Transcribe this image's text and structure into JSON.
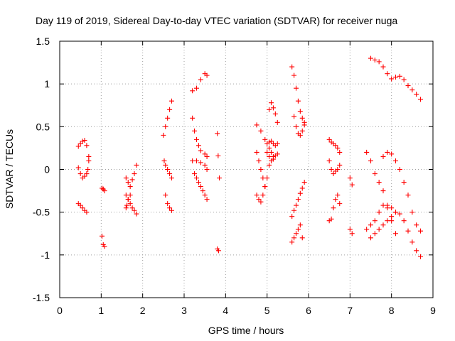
{
  "chart_data": {
    "type": "scatter",
    "title": "Day 119 of 2019, Sidereal Day-to-day VTEC variation (SDTVAR) for receiver nuga",
    "xlabel": "GPS time / hours",
    "ylabel": "SDTVAR / TECUs",
    "xlim": [
      0,
      9
    ],
    "ylim": [
      -1.5,
      1.5
    ],
    "xticks": [
      0,
      1,
      2,
      3,
      4,
      5,
      6,
      7,
      8,
      9
    ],
    "yticks": [
      -1.5,
      -1,
      -0.5,
      0,
      0.5,
      1,
      1.5
    ],
    "xtick_labels": [
      "0",
      "1",
      "2",
      "3",
      "4",
      "5",
      "6",
      "7",
      "8",
      "9"
    ],
    "ytick_labels": [
      "-1.5",
      "-1",
      "-0.5",
      "0",
      "0.5",
      "1",
      "1.5"
    ],
    "grid": true,
    "marker": "+",
    "color": "#ff0000",
    "series": [
      {
        "name": "s1",
        "x": [
          0.45,
          0.5,
          0.55,
          0.6,
          0.65,
          0.7
        ],
        "y": [
          0.27,
          0.3,
          0.33,
          0.34,
          0.28,
          0.15
        ]
      },
      {
        "name": "s2",
        "x": [
          0.7,
          0.68,
          0.65,
          0.6,
          0.55,
          0.5,
          0.45
        ],
        "y": [
          0.1,
          0.0,
          -0.05,
          -0.08,
          -0.1,
          -0.05,
          0.02
        ]
      },
      {
        "name": "s3",
        "x": [
          0.45,
          0.5,
          0.55,
          0.6,
          0.65
        ],
        "y": [
          -0.4,
          -0.42,
          -0.45,
          -0.48,
          -0.5
        ]
      },
      {
        "name": "s4",
        "x": [
          1.02,
          1.05,
          1.08
        ],
        "y": [
          -0.22,
          -0.23,
          -0.25
        ]
      },
      {
        "name": "s5",
        "x": [
          1.02,
          1.05,
          1.08
        ],
        "y": [
          -0.78,
          -0.88,
          -0.9
        ]
      },
      {
        "name": "s6",
        "x": [
          1.6,
          1.65,
          1.7,
          1.75,
          1.8,
          1.85
        ],
        "y": [
          -0.1,
          -0.15,
          -0.2,
          -0.12,
          -0.05,
          0.05
        ]
      },
      {
        "name": "s7",
        "x": [
          1.6,
          1.65,
          1.7,
          1.75,
          1.8,
          1.85
        ],
        "y": [
          -0.3,
          -0.35,
          -0.4,
          -0.45,
          -0.48,
          -0.52
        ]
      },
      {
        "name": "s8",
        "x": [
          1.6,
          1.62,
          1.65,
          1.7
        ],
        "y": [
          -0.45,
          -0.42,
          -0.35,
          -0.3
        ]
      },
      {
        "name": "s9",
        "x": [
          2.5,
          2.55,
          2.6,
          2.65,
          2.7
        ],
        "y": [
          0.4,
          0.5,
          0.6,
          0.7,
          0.8
        ]
      },
      {
        "name": "s10",
        "x": [
          2.52,
          2.55,
          2.6,
          2.65,
          2.7
        ],
        "y": [
          0.1,
          0.05,
          0.0,
          -0.05,
          -0.1
        ]
      },
      {
        "name": "s11",
        "x": [
          2.55,
          2.6,
          2.65,
          2.7
        ],
        "y": [
          -0.3,
          -0.4,
          -0.45,
          -0.48
        ]
      },
      {
        "name": "s12",
        "x": [
          3.2,
          3.3,
          3.4,
          3.5,
          3.55
        ],
        "y": [
          0.92,
          0.95,
          1.05,
          1.12,
          1.1
        ]
      },
      {
        "name": "s13",
        "x": [
          3.2,
          3.25,
          3.3,
          3.35,
          3.4,
          3.5,
          3.55
        ],
        "y": [
          0.6,
          0.45,
          0.35,
          0.28,
          0.22,
          0.18,
          0.15
        ]
      },
      {
        "name": "s14",
        "x": [
          3.2,
          3.3,
          3.4,
          3.5,
          3.55
        ],
        "y": [
          0.1,
          0.1,
          0.08,
          0.05,
          0.0
        ]
      },
      {
        "name": "s15",
        "x": [
          3.25,
          3.3,
          3.35,
          3.4,
          3.45,
          3.5,
          3.55
        ],
        "y": [
          -0.05,
          -0.1,
          -0.15,
          -0.2,
          -0.25,
          -0.3,
          -0.35
        ]
      },
      {
        "name": "s16",
        "x": [
          3.8,
          3.82,
          3.85
        ],
        "y": [
          0.42,
          0.16,
          -0.1
        ]
      },
      {
        "name": "s17",
        "x": [
          3.8,
          3.83
        ],
        "y": [
          -0.93,
          -0.95
        ]
      },
      {
        "name": "s18",
        "x": [
          4.75,
          4.85,
          4.95,
          5.05,
          5.15
        ],
        "y": [
          0.52,
          0.45,
          0.35,
          0.25,
          0.15
        ]
      },
      {
        "name": "s19",
        "x": [
          4.75,
          4.8,
          4.85,
          4.9,
          4.95,
          5.0,
          5.05,
          5.1
        ],
        "y": [
          0.2,
          0.1,
          0.0,
          -0.1,
          -0.2,
          -0.1,
          0.05,
          0.2
        ]
      },
      {
        "name": "s20",
        "x": [
          4.75,
          4.8,
          4.85,
          4.9,
          4.95
        ],
        "y": [
          -0.3,
          -0.35,
          -0.38,
          -0.3,
          -0.2
        ]
      },
      {
        "name": "s21",
        "x": [
          5.05,
          5.1,
          5.15,
          5.2,
          5.25
        ],
        "y": [
          0.7,
          0.78,
          0.72,
          0.65,
          0.55
        ]
      },
      {
        "name": "s22",
        "x": [
          5.0,
          5.05,
          5.1,
          5.15,
          5.2,
          5.25
        ],
        "y": [
          0.3,
          0.32,
          0.33,
          0.3,
          0.28,
          0.3
        ]
      },
      {
        "name": "s23",
        "x": [
          5.0,
          5.05,
          5.1,
          5.15,
          5.2,
          5.25
        ],
        "y": [
          0.2,
          0.15,
          0.1,
          0.12,
          0.16,
          0.18
        ]
      },
      {
        "name": "s24",
        "x": [
          5.6,
          5.65,
          5.7,
          5.75,
          5.8,
          5.85,
          5.9
        ],
        "y": [
          1.2,
          1.1,
          0.95,
          0.8,
          0.68,
          0.6,
          0.55
        ]
      },
      {
        "name": "s25",
        "x": [
          5.65,
          5.7,
          5.75,
          5.8,
          5.85,
          5.9
        ],
        "y": [
          0.62,
          0.5,
          0.42,
          0.4,
          0.45,
          0.52
        ]
      },
      {
        "name": "s26",
        "x": [
          5.6,
          5.65,
          5.7,
          5.75,
          5.8,
          5.85,
          5.9
        ],
        "y": [
          -0.55,
          -0.48,
          -0.42,
          -0.35,
          -0.28,
          -0.22,
          -0.15
        ]
      },
      {
        "name": "s27",
        "x": [
          5.6,
          5.65,
          5.7,
          5.75,
          5.8,
          5.85
        ],
        "y": [
          -0.85,
          -0.8,
          -0.75,
          -0.7,
          -0.65,
          -0.8
        ]
      },
      {
        "name": "s28",
        "x": [
          6.5,
          6.55,
          6.6,
          6.65,
          6.7,
          6.75
        ],
        "y": [
          0.35,
          0.32,
          0.3,
          0.28,
          0.25,
          0.2
        ]
      },
      {
        "name": "s29",
        "x": [
          6.5,
          6.55,
          6.6,
          6.65,
          6.7,
          6.75
        ],
        "y": [
          0.1,
          0.0,
          -0.05,
          -0.02,
          0.0,
          0.05
        ]
      },
      {
        "name": "s30",
        "x": [
          6.5,
          6.55,
          6.6,
          6.65,
          6.7,
          6.75
        ],
        "y": [
          -0.6,
          -0.58,
          -0.45,
          -0.35,
          -0.3,
          -0.4
        ]
      },
      {
        "name": "s31",
        "x": [
          7.0,
          7.05
        ],
        "y": [
          -0.7,
          -0.75
        ]
      },
      {
        "name": "s32",
        "x": [
          7.0,
          7.05
        ],
        "y": [
          -0.1,
          -0.18
        ]
      },
      {
        "name": "s33",
        "x": [
          7.4,
          7.5,
          7.6,
          7.7,
          7.8,
          7.9,
          8.0,
          8.1
        ],
        "y": [
          0.2,
          0.1,
          -0.05,
          -0.15,
          -0.25,
          -0.45,
          -0.6,
          -0.75
        ]
      },
      {
        "name": "s34",
        "x": [
          7.4,
          7.5,
          7.6,
          7.7,
          7.8,
          7.9,
          8.0,
          8.1
        ],
        "y": [
          -0.7,
          -0.65,
          -0.6,
          -0.5,
          -0.42,
          -0.42,
          -0.45,
          -0.5
        ]
      },
      {
        "name": "s35",
        "x": [
          7.5,
          7.6,
          7.7,
          7.8,
          7.9,
          8.0,
          8.1,
          8.2,
          8.3,
          8.4,
          8.5,
          8.6,
          8.7
        ],
        "y": [
          -0.8,
          -0.75,
          -0.7,
          -0.65,
          -0.6,
          -0.55,
          -0.5,
          -0.52,
          -0.6,
          -0.72,
          -0.85,
          -0.95,
          -1.02
        ]
      },
      {
        "name": "s36",
        "x": [
          7.5,
          7.6,
          7.7,
          7.8,
          7.9,
          8.0,
          8.1,
          8.2,
          8.3,
          8.4,
          8.5,
          8.6,
          8.7
        ],
        "y": [
          1.3,
          1.28,
          1.26,
          1.2,
          1.12,
          1.06,
          1.08,
          1.09,
          1.05,
          0.98,
          0.93,
          0.88,
          0.82
        ]
      },
      {
        "name": "s37",
        "x": [
          7.8,
          7.9,
          8.0,
          8.1,
          8.2,
          8.3,
          8.4,
          8.5,
          8.6,
          8.7
        ],
        "y": [
          0.15,
          0.2,
          0.18,
          0.1,
          0.0,
          -0.15,
          -0.3,
          -0.5,
          -0.65,
          -0.72
        ]
      }
    ]
  }
}
